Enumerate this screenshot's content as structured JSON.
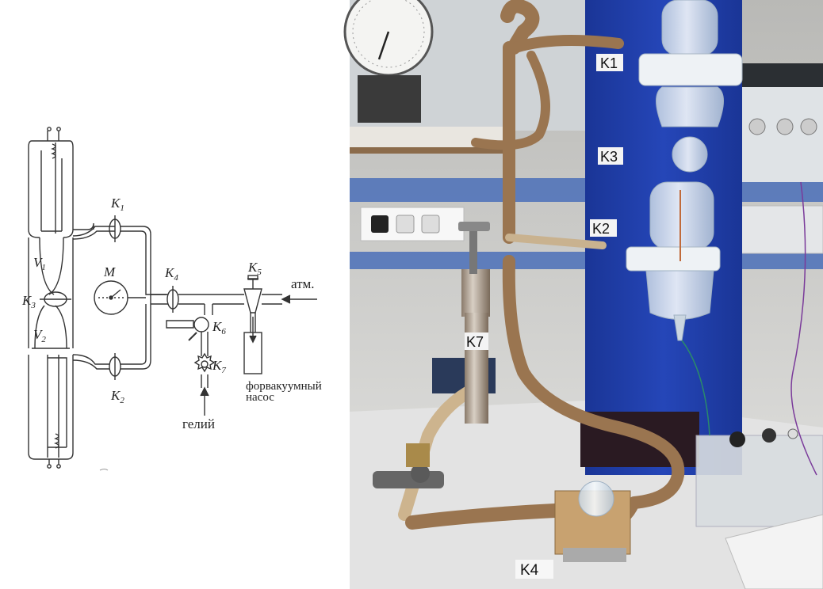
{
  "schematic": {
    "labels": {
      "k1": "K",
      "k1_sub": "1",
      "k2": "K",
      "k2_sub": "2",
      "k3": "K",
      "k3_sub": "3",
      "k4": "K",
      "k4_sub": "4",
      "k5": "K",
      "k5_sub": "5",
      "k6": "K",
      "k6_sub": "6",
      "k7": "K",
      "k7_sub": "7",
      "v1": "V",
      "v1_sub": "1",
      "v2": "V",
      "v2_sub": "2",
      "m": "M",
      "atm": "атм.",
      "pump_line1": "форвакуумный",
      "pump_line2": "насос",
      "helium": "гелий"
    }
  },
  "photo": {
    "tags": {
      "k1": "K1",
      "k2": "K2",
      "k3": "K3",
      "k4": "K4",
      "k7": "K7"
    },
    "colors": {
      "panel": "#1f3ea8",
      "hose": "#9a7550",
      "glass": "#dfe7ee",
      "table": "#e6e6e6"
    }
  }
}
